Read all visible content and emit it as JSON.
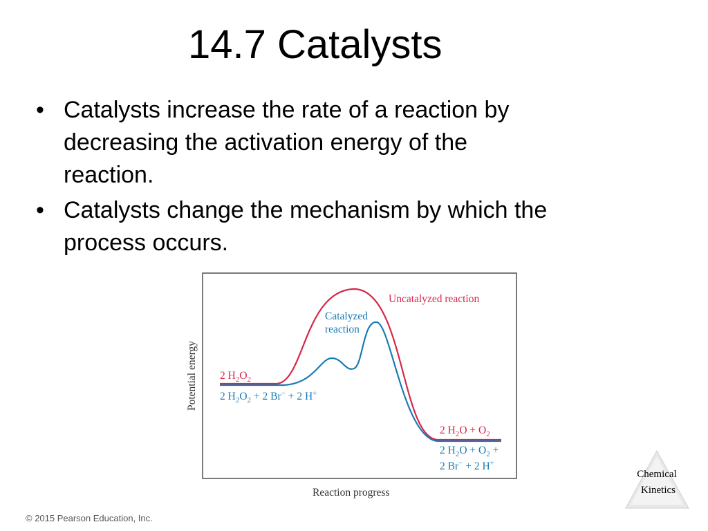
{
  "slide": {
    "title": "14.7 Catalysts",
    "bullets": [
      {
        "text_lines": [
          "Catalysts increase the rate of a reaction by",
          "decreasing the activation energy of the",
          "reaction."
        ]
      },
      {
        "text_lines": [
          "Catalysts change the mechanism by which the",
          "process occurs."
        ]
      }
    ],
    "bullet_glyph": "•",
    "copyright": "© 2015 Pearson Education, Inc."
  },
  "figure": {
    "ylabel": "Potential energy",
    "xlabel": "Reaction progress",
    "uncatalyzed_label": "Uncatalyzed reaction",
    "catalyzed_label_line1": "Catalyzed",
    "catalyzed_label_line2": "reaction",
    "reactant_uncat": {
      "pre": "2 H",
      "sub1": "2",
      "mid": "O",
      "sub2": "2",
      "post": ""
    },
    "reactant_cat": {
      "pre": "2 H",
      "sub1": "2",
      "mid": "O",
      "sub2": "2",
      "post": " + 2 Br",
      "sup1": "−",
      "post2": " + 2 H",
      "sup2": "+"
    },
    "product_uncat": {
      "pre": "2 H",
      "sub1": "2",
      "mid": "O + O",
      "sub2": "2"
    },
    "product_cat_line1": {
      "pre": "2 H",
      "sub1": "2",
      "mid": "O + O",
      "sub2": "2",
      "post": " +"
    },
    "product_cat_line2": {
      "pre": "2 Br",
      "sup1": "−",
      "mid": " + 2 H",
      "sup2": "+"
    },
    "colors": {
      "uncatalyzed": "#d6264a",
      "catalyzed": "#1a7bb5",
      "frame": "#333333"
    }
  },
  "logo": {
    "line1": "Chemical",
    "line2": "Kinetics"
  }
}
